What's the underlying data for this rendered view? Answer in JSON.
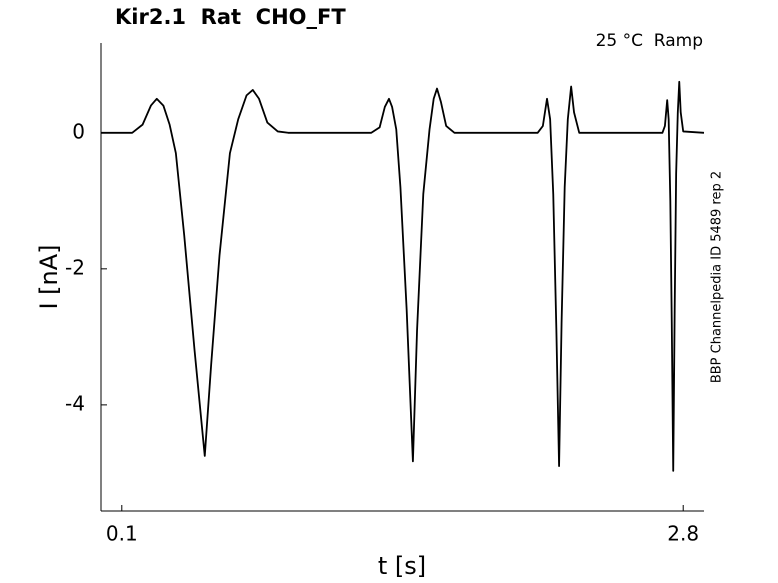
{
  "chart_data": {
    "type": "line",
    "title": "Kir2.1  Rat  CHO_FT",
    "subtitle": "25 °C  Ramp",
    "annotation": "BBP Channelpedia ID 5489 rep 2",
    "x_label": "t [s]",
    "y_label": "I [nA]",
    "color": "#000000",
    "xlim": [
      0,
      2.9
    ],
    "xticks": [
      0.1,
      2.8
    ],
    "ylim": [
      -5.56,
      1.32
    ],
    "yticks": [
      0,
      -2,
      -4
    ],
    "grid": false,
    "x": [
      0,
      0.15,
      0.2,
      0.24,
      0.268,
      0.3,
      0.33,
      0.36,
      0.4,
      0.45,
      0.499,
      0.53,
      0.57,
      0.62,
      0.66,
      0.7,
      0.73,
      0.76,
      0.8,
      0.85,
      0.9,
      1.3,
      1.34,
      1.365,
      1.385,
      1.4,
      1.42,
      1.44,
      1.47,
      1.5,
      1.52,
      1.55,
      1.58,
      1.6,
      1.616,
      1.635,
      1.66,
      1.7,
      2.1,
      2.125,
      2.145,
      2.16,
      2.175,
      2.19,
      2.203,
      2.215,
      2.23,
      2.245,
      2.261,
      2.275,
      2.3,
      2.7,
      2.712,
      2.723,
      2.73,
      2.738,
      2.745,
      2.752,
      2.759,
      2.766,
      2.774,
      2.781,
      2.788,
      2.8,
      2.9
    ],
    "values": [
      0,
      0,
      0.12,
      0.4,
      0.5,
      0.4,
      0.12,
      -0.3,
      -1.5,
      -3.2,
      -4.75,
      -3.4,
      -1.8,
      -0.3,
      0.2,
      0.55,
      0.63,
      0.5,
      0.15,
      0.02,
      0,
      0,
      0.08,
      0.38,
      0.5,
      0.38,
      0.05,
      -0.8,
      -2.6,
      -4.83,
      -2.9,
      -0.9,
      0.05,
      0.5,
      0.65,
      0.45,
      0.1,
      0,
      0,
      0.1,
      0.5,
      0.2,
      -0.9,
      -2.9,
      -4.9,
      -2.8,
      -0.8,
      0.2,
      0.68,
      0.3,
      0,
      0,
      0.1,
      0.48,
      0.2,
      -1.0,
      -2.8,
      -4.97,
      -2.6,
      -0.6,
      0.3,
      0.75,
      0.3,
      0.02,
      0
    ]
  }
}
